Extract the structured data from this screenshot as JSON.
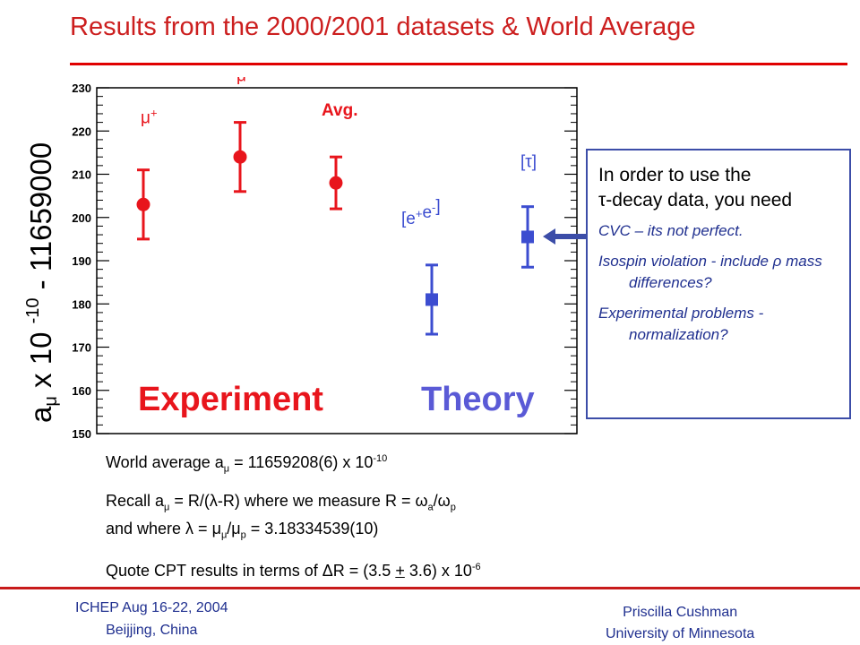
{
  "slide": {
    "title": "Results from the 2000/2001 datasets & World Average"
  },
  "chart_data": {
    "type": "scatter",
    "ylim": [
      150,
      230
    ],
    "y_ticks": [
      150,
      160,
      170,
      180,
      190,
      200,
      210,
      220,
      230
    ],
    "ylabel": {
      "base": "a",
      "sub": "μ",
      "mid": " x 10 ",
      "sup": "-10",
      "tail": " - 11659000"
    },
    "points": [
      {
        "label": "μ",
        "label_sup": "+",
        "y": 203,
        "ylow": 195,
        "yhigh": 211,
        "color": "#e8151c"
      },
      {
        "label": "μ",
        "label_sup": "-",
        "y": 214,
        "ylow": 206,
        "yhigh": 222,
        "color": "#e8151c"
      },
      {
        "label": "Avg.",
        "label_sup": "",
        "y": 208,
        "ylow": 202,
        "yhigh": 214,
        "color": "#e8151c"
      },
      {
        "label": "[e",
        "label_sup": "+",
        "label_tail": "e",
        "label_sup2": "-",
        "label_end": "]",
        "y": 181,
        "ylow": 173,
        "yhigh": 189,
        "color": "#3c4dd0"
      },
      {
        "label": "[τ]",
        "label_sup": "",
        "y": 195.5,
        "ylow": 188.5,
        "yhigh": 202.5,
        "color": "#3c4dd0"
      }
    ],
    "annotations": [
      {
        "text": "Experiment",
        "color": "#e8151c"
      },
      {
        "text": "Theory",
        "color": "#5a5ad6"
      }
    ]
  },
  "callout": {
    "lead_line1": "In order to use the",
    "lead_line2": "τ-decay data, you need",
    "items": [
      "CVC – its not perfect.",
      "Isospin violation - include ρ mass differences?",
      "Experimental problems - normalization?"
    ]
  },
  "notes": {
    "line1_a": "World average a",
    "line1_sub": "μ",
    "line1_b": " = 11659208(6)  x 10",
    "line1_sup": "-10",
    "line2_a": "Recall a",
    "line2_sub1": "μ",
    "line2_b": " = R/(λ-R) where we measure R = ω",
    "line2_sub2": "a",
    "line2_c": "/ω",
    "line2_sub3": "p",
    "line3_a": "and where λ = μ",
    "line3_sub1": "μ",
    "line3_b": "/μ",
    "line3_sub2": "p",
    "line3_c": " = 3.18334539(10)",
    "line4_a": "Quote CPT results in terms of ΔR = (3.5 ",
    "line4_pm": "+",
    "line4_b": " 3.6) x 10",
    "line4_sup": "-6"
  },
  "footer": {
    "left_line1": "ICHEP   Aug 16-22, 2004",
    "left_line2": "Beijjing, China",
    "right_line1": "Priscilla Cushman",
    "right_line2": "University of Minnesota"
  }
}
